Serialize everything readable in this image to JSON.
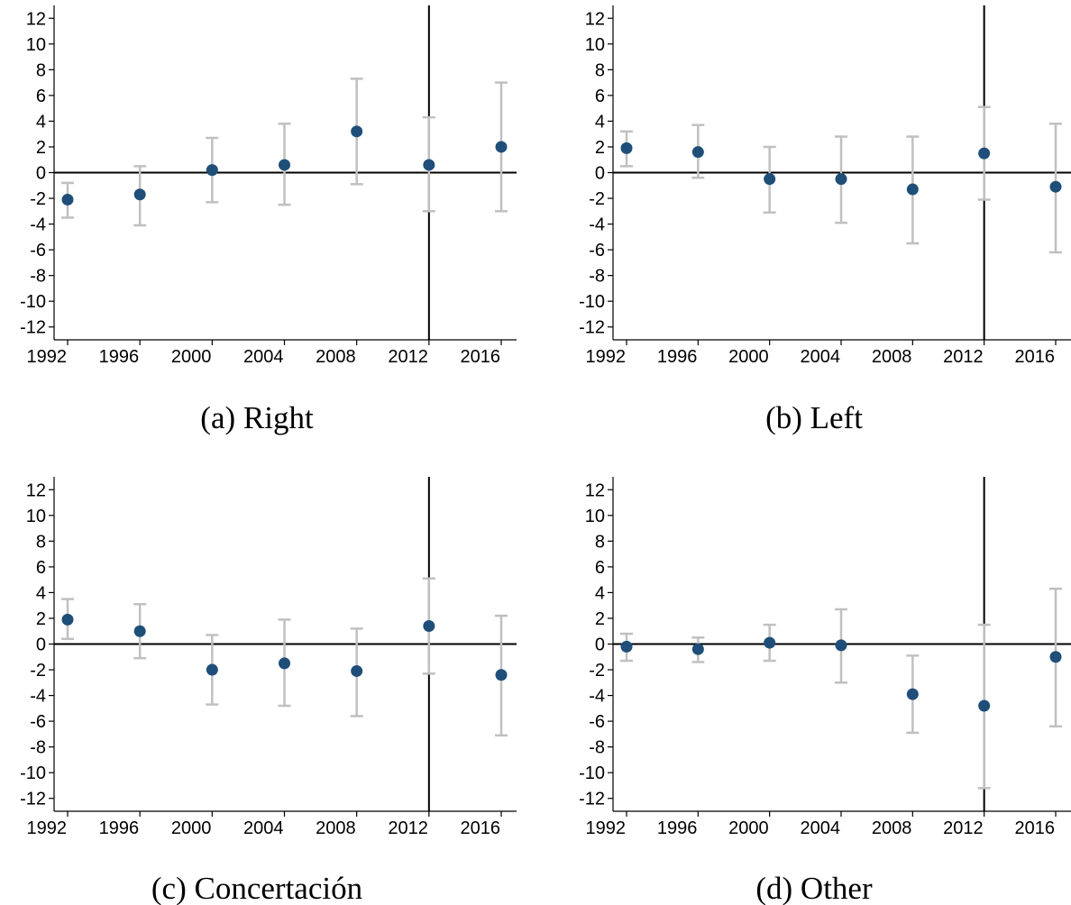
{
  "chart_data": [
    {
      "type": "scatter",
      "caption": "(a) Right",
      "x": [
        1992,
        1996,
        2000,
        2004,
        2008,
        2012,
        2016
      ],
      "y": [
        -2.1,
        -1.7,
        0.2,
        0.6,
        3.2,
        0.6,
        2.0
      ],
      "ci_low": [
        -3.5,
        -4.1,
        -2.3,
        -2.5,
        -0.9,
        -3.0,
        -3.0
      ],
      "ci_high": [
        -0.8,
        0.5,
        2.7,
        3.8,
        7.3,
        4.3,
        7.0
      ],
      "vline_x": 2012,
      "hline_y": 0,
      "xticks": [
        "1992",
        "1996",
        "2000",
        "2004",
        "2008",
        "2012",
        "2016"
      ],
      "yticks": [
        "12",
        "10",
        "8",
        "6",
        "4",
        "2",
        "0",
        "-2",
        "-4",
        "-6",
        "-8",
        "-10",
        "-12"
      ],
      "xlim": [
        1992,
        2016
      ],
      "ylim": [
        -13,
        13
      ],
      "colors": {
        "point": "#1f4e79",
        "ci": "#c0c0c0",
        "refline": "#000000"
      }
    },
    {
      "type": "scatter",
      "caption": "(b) Left",
      "x": [
        1992,
        1996,
        2000,
        2004,
        2008,
        2012,
        2016
      ],
      "y": [
        1.9,
        1.6,
        -0.5,
        -0.5,
        -1.3,
        1.5,
        -1.1
      ],
      "ci_low": [
        0.5,
        -0.4,
        -3.1,
        -3.9,
        -5.5,
        -2.1,
        -6.2
      ],
      "ci_high": [
        3.2,
        3.7,
        2.0,
        2.8,
        2.8,
        5.1,
        3.8
      ],
      "vline_x": 2012,
      "hline_y": 0,
      "xticks": [
        "1992",
        "1996",
        "2000",
        "2004",
        "2008",
        "2012",
        "2016"
      ],
      "yticks": [
        "12",
        "10",
        "8",
        "6",
        "4",
        "2",
        "0",
        "-2",
        "-4",
        "-6",
        "-8",
        "-10",
        "-12"
      ],
      "xlim": [
        1992,
        2016
      ],
      "ylim": [
        -13,
        13
      ],
      "colors": {
        "point": "#1f4e79",
        "ci": "#c0c0c0",
        "refline": "#000000"
      }
    },
    {
      "type": "scatter",
      "caption": "(c) Concertación",
      "x": [
        1992,
        1996,
        2000,
        2004,
        2008,
        2012,
        2016
      ],
      "y": [
        1.9,
        1.0,
        -2.0,
        -1.5,
        -2.1,
        1.4,
        -2.4
      ],
      "ci_low": [
        0.4,
        -1.1,
        -4.7,
        -4.8,
        -5.6,
        -2.3,
        -7.1
      ],
      "ci_high": [
        3.5,
        3.1,
        0.7,
        1.9,
        1.2,
        5.1,
        2.2
      ],
      "vline_x": 2012,
      "hline_y": 0,
      "xticks": [
        "1992",
        "1996",
        "2000",
        "2004",
        "2008",
        "2012",
        "2016"
      ],
      "yticks": [
        "12",
        "10",
        "8",
        "6",
        "4",
        "2",
        "0",
        "-2",
        "-4",
        "-6",
        "-8",
        "-10",
        "-12"
      ],
      "xlim": [
        1992,
        2016
      ],
      "ylim": [
        -13,
        13
      ],
      "colors": {
        "point": "#1f4e79",
        "ci": "#c0c0c0",
        "refline": "#000000"
      }
    },
    {
      "type": "scatter",
      "caption": "(d) Other",
      "x": [
        1992,
        1996,
        2000,
        2004,
        2008,
        2012,
        2016
      ],
      "y": [
        -0.2,
        -0.4,
        0.1,
        -0.1,
        -3.9,
        -4.8,
        -1.0
      ],
      "ci_low": [
        -1.3,
        -1.4,
        -1.3,
        -3.0,
        -6.9,
        -11.2,
        -6.4
      ],
      "ci_high": [
        0.8,
        0.5,
        1.5,
        2.7,
        -0.9,
        1.5,
        4.3
      ],
      "vline_x": 2012,
      "hline_y": 0,
      "xticks": [
        "1992",
        "1996",
        "2000",
        "2004",
        "2008",
        "2012",
        "2016"
      ],
      "yticks": [
        "12",
        "10",
        "8",
        "6",
        "4",
        "2",
        "0",
        "-2",
        "-4",
        "-6",
        "-8",
        "-10",
        "-12"
      ],
      "xlim": [
        1992,
        2016
      ],
      "ylim": [
        -13,
        13
      ],
      "colors": {
        "point": "#1f4e79",
        "ci": "#c0c0c0",
        "refline": "#000000"
      }
    }
  ]
}
